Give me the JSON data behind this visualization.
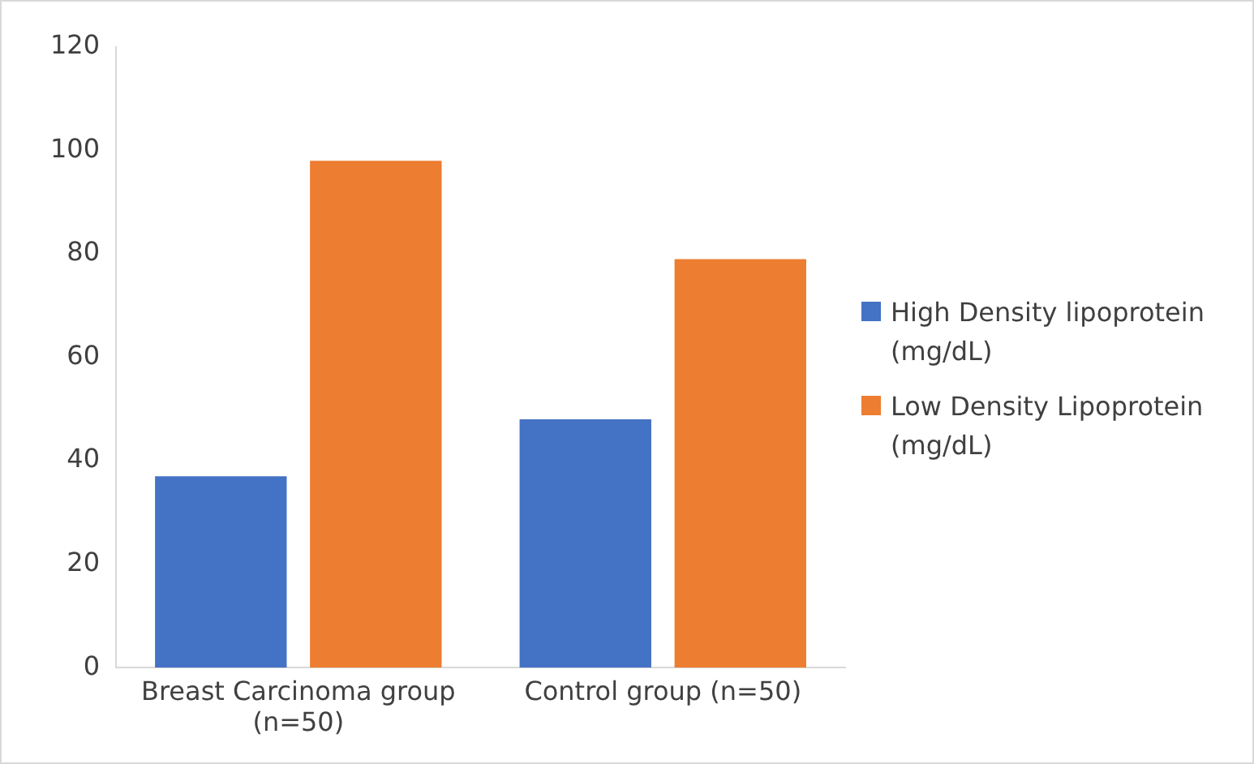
{
  "chart_data": {
    "type": "bar",
    "categories": [
      "Breast Carcinoma group (n=50)",
      "Control group (n=50)"
    ],
    "series": [
      {
        "name": "High Density lipoprotein (mg/dL)",
        "color": "#4472c4",
        "values": [
          37,
          48
        ]
      },
      {
        "name": "Low Density Lipoprotein (mg/dL)",
        "color": "#ed7d31",
        "values": [
          98,
          79
        ]
      }
    ],
    "ylim": [
      0,
      120
    ],
    "yticks": [
      0,
      20,
      40,
      60,
      80,
      100,
      120
    ],
    "grid": false,
    "legend": "right"
  }
}
